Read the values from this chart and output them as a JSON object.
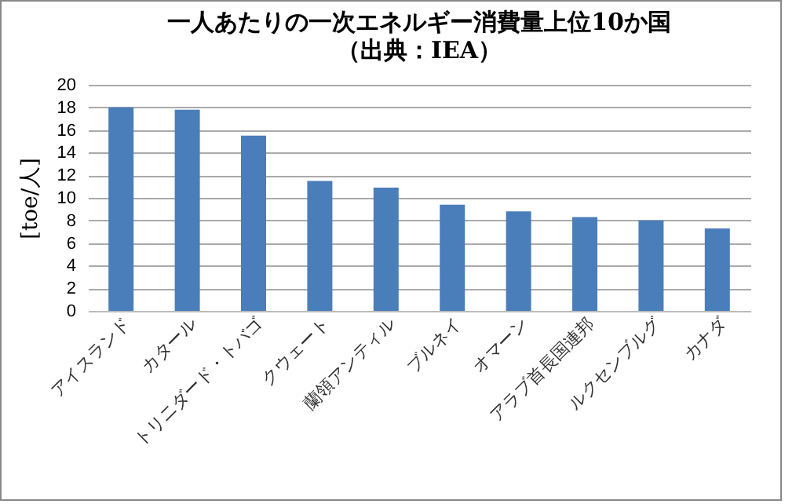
{
  "chart_data": {
    "type": "bar",
    "title": "一人あたりの一次エネルギー消費量上位10か国",
    "subtitle": "（出典：IEA）",
    "ylabel": "[toe/人]",
    "categories": [
      "アイスランド",
      "カタール",
      "トリニダード・トバゴ",
      "クウェート",
      "蘭領アンティル",
      "ブルネイ",
      "オマーン",
      "アラブ首長国連邦",
      "ルクセンブルグ",
      "カナダ"
    ],
    "values": [
      18.0,
      17.8,
      15.5,
      11.5,
      10.9,
      9.4,
      8.8,
      8.3,
      8.0,
      7.3
    ],
    "color": "#4a7ebb",
    "ylim": [
      0,
      20
    ],
    "yticks": [
      0,
      2,
      4,
      6,
      8,
      10,
      12,
      14,
      16,
      18,
      20
    ],
    "grid": "y"
  }
}
